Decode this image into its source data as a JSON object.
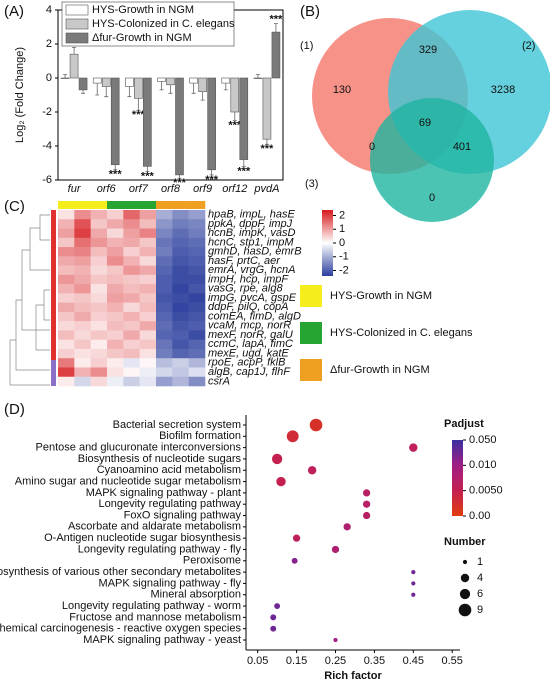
{
  "chart_data": [
    {
      "type": "bar",
      "panel_label": "(A)",
      "ylabel": "Log₂ (Fold Change)",
      "categories": [
        "fur",
        "orf6",
        "orf7",
        "orf8",
        "orf9",
        "orf12",
        "pvdA"
      ],
      "ylim": [
        -6,
        4
      ],
      "yticks": [
        -6,
        -4,
        -2,
        0,
        2,
        4
      ],
      "series": [
        {
          "name": "HYS-Growth in NGM",
          "color": "#ffffff",
          "values": [
            0,
            -0.3,
            -0.5,
            -0.2,
            -0.3,
            -0.3,
            0
          ],
          "errors": [
            0.2,
            0.7,
            0.6,
            0.5,
            0.6,
            0.4,
            0.2
          ],
          "significance": [
            null,
            null,
            null,
            null,
            null,
            null,
            null
          ]
        },
        {
          "name": "HYS-Colonized in C. elegans",
          "color": "#c8c8c8",
          "values": [
            1.4,
            -0.5,
            -1.2,
            -0.4,
            -0.8,
            -2.0,
            -3.6
          ],
          "errors": [
            0.4,
            0.6,
            0.7,
            0.5,
            0.5,
            0.5,
            0.3
          ],
          "significance": [
            "***",
            null,
            "***",
            null,
            null,
            "***",
            "***"
          ]
        },
        {
          "name": "Δfur-Growth in NGM",
          "color": "#7a7a7a",
          "values": [
            -0.7,
            -5.1,
            -5.2,
            -5.7,
            -5.4,
            -4.8,
            2.7
          ],
          "errors": [
            0.2,
            0.3,
            0.3,
            0.2,
            0.3,
            0.4,
            0.5
          ],
          "significance": [
            null,
            "***",
            "***",
            "***",
            "***",
            "***",
            "***"
          ]
        }
      ]
    },
    {
      "type": "venn",
      "panel_label": "(B)",
      "sets": [
        {
          "name": "(1)",
          "color": "#f4776a"
        },
        {
          "name": "(2)",
          "color": "#3fc5d6"
        },
        {
          "name": "(3)",
          "color": "#1fb5a0"
        }
      ],
      "regions": [
        {
          "sets": [
            0
          ],
          "value": 130
        },
        {
          "sets": [
            1
          ],
          "value": 3238
        },
        {
          "sets": [
            2
          ],
          "value": 0
        },
        {
          "sets": [
            0,
            1
          ],
          "value": 329
        },
        {
          "sets": [
            0,
            2
          ],
          "value": 0
        },
        {
          "sets": [
            1,
            2
          ],
          "value": 401
        },
        {
          "sets": [
            0,
            1,
            2
          ],
          "value": 69
        }
      ]
    },
    {
      "type": "heatmap",
      "panel_label": "(C)",
      "row_labels": [
        "hpaB, impL, hasE",
        "ppkA, dppF, impJ",
        "hcnB, impK, vasD",
        "hcnC, stp1, impM",
        "gmhD, hasD, emrB",
        "hasF, prtC, aer",
        "emrA, vrgG, hcnA",
        "impH, hcp, impF",
        "vasG, rpe, alg8",
        "impG, pvcA, gspE",
        "ddpF, pilQ, copA",
        "comEA, fimD, algD",
        "vcaM, mcp, norR",
        "mexF, norR, galU",
        "ccmC, lapA, fimC",
        "mexE, ugd, katE",
        "rpoE, acpP, fklB",
        "algB, cap1J, flhF",
        "csrA"
      ],
      "groups": [
        {
          "name": "HYS-Growth in NGM",
          "color": "#f5ee1c"
        },
        {
          "name": "HYS-Colonized in C. elegans",
          "color": "#27a532"
        },
        {
          "name": "Δfur-Growth in NGM",
          "color": "#f0a020"
        }
      ],
      "column_groups": [
        0,
        0,
        0,
        1,
        1,
        1,
        2,
        2,
        2
      ],
      "z": [
        [
          0.3,
          1.2,
          0.8,
          0.5,
          1.6,
          1.0,
          -1.0,
          -1.4,
          -1.2
        ],
        [
          0.8,
          1.8,
          0.6,
          0.9,
          1.2,
          0.7,
          -1.3,
          -1.6,
          -1.5
        ],
        [
          1.0,
          2.0,
          0.9,
          0.4,
          1.0,
          1.3,
          -1.5,
          -1.8,
          -1.6
        ],
        [
          0.6,
          1.5,
          1.1,
          0.8,
          0.9,
          0.6,
          -1.7,
          -1.9,
          -1.8
        ],
        [
          1.2,
          1.3,
          0.7,
          1.0,
          0.5,
          0.8,
          -1.6,
          -2.0,
          -1.9
        ],
        [
          0.9,
          1.0,
          0.5,
          1.2,
          0.8,
          0.4,
          -1.8,
          -2.1,
          -2.0
        ],
        [
          0.7,
          0.8,
          0.4,
          0.6,
          1.1,
          0.9,
          -1.9,
          -2.2,
          -2.1
        ],
        [
          1.1,
          0.9,
          0.6,
          0.7,
          0.6,
          0.5,
          -2.0,
          -2.2,
          -2.2
        ],
        [
          0.8,
          1.1,
          0.3,
          0.9,
          0.7,
          0.8,
          -2.0,
          -2.3,
          -2.1
        ],
        [
          0.5,
          0.6,
          0.4,
          1.0,
          0.9,
          0.6,
          -2.1,
          -2.2,
          -2.3
        ],
        [
          0.9,
          0.7,
          0.6,
          0.8,
          0.4,
          0.7,
          -2.0,
          -2.3,
          -2.2
        ],
        [
          0.6,
          0.9,
          0.5,
          0.6,
          0.8,
          0.5,
          -1.9,
          -2.2,
          -2.1
        ],
        [
          0.4,
          0.5,
          0.3,
          0.7,
          0.6,
          0.9,
          -1.8,
          -2.1,
          -2.0
        ],
        [
          0.7,
          0.4,
          0.6,
          0.5,
          0.9,
          0.4,
          -1.9,
          -2.0,
          -2.2
        ],
        [
          0.3,
          0.6,
          0.2,
          0.8,
          0.5,
          0.6,
          -1.7,
          -2.1,
          -1.9
        ],
        [
          0.5,
          0.3,
          0.4,
          0.6,
          0.7,
          0.3,
          -1.6,
          -1.9,
          -1.8
        ],
        [
          1.4,
          0.2,
          0.5,
          0.2,
          -0.3,
          0.1,
          -0.8,
          -0.6,
          -0.9
        ],
        [
          2.0,
          0.8,
          1.2,
          0.3,
          0.1,
          -0.2,
          -0.5,
          -0.7,
          -0.4
        ],
        [
          0.2,
          -0.5,
          0.4,
          -0.2,
          -0.6,
          -0.3,
          -1.2,
          -0.9,
          -1.4
        ]
      ],
      "zlim": [
        -2.4,
        2.4
      ],
      "zticks": [
        -2,
        -1,
        0,
        1,
        2
      ],
      "colorscale": [
        "#2a3d9c",
        "#ffffff",
        "#d7191c"
      ]
    },
    {
      "type": "bubble",
      "panel_label": "(D)",
      "categories": [
        "Bacterial secretion system",
        "Biofilm formation",
        "Pentose and glucuronate interconversions",
        "Biosynthesis of nucleotide sugars",
        "Cyanoamino acid metabolism",
        "Amino sugar and nucleotide sugar metabolism",
        "MAPK signaling pathway - plant",
        "Longevity regulating pathway",
        "FoxO signaling pathway",
        "Ascorbate and aldarate metabolism",
        "O-Antigen nucleotide sugar biosynthesis",
        "Longevity regulating pathway - fly",
        "Peroxisome",
        "Biosynthesis of various other secondary metabolites",
        "MAPK signaling pathway - fly",
        "Mineral absorption",
        "Longevity regulating pathway - worm",
        "Fructose and mannose metabolism",
        "Chemical carcinogenesis - reactive oxygen species",
        "MAPK signaling pathway - yeast"
      ],
      "x": [
        0.2,
        0.14,
        0.45,
        0.1,
        0.19,
        0.11,
        0.33,
        0.33,
        0.33,
        0.28,
        0.15,
        0.25,
        0.145,
        0.45,
        0.45,
        0.45,
        0.1,
        0.09,
        0.09,
        0.25
      ],
      "size": [
        9,
        8,
        4,
        6,
        4,
        5,
        3,
        3,
        3,
        3,
        3,
        3,
        2,
        1,
        1,
        1,
        2,
        2,
        2,
        1
      ],
      "padjust": [
        0.002,
        0.003,
        0.006,
        0.005,
        0.006,
        0.005,
        0.007,
        0.007,
        0.007,
        0.008,
        0.006,
        0.008,
        0.02,
        0.03,
        0.03,
        0.03,
        0.03,
        0.03,
        0.03,
        0.01
      ],
      "xlabel": "Rich factor",
      "xlim": [
        0.02,
        0.57
      ],
      "xticks": [
        0.05,
        0.15,
        0.25,
        0.35,
        0.45,
        0.55
      ],
      "color_title": "Padjust",
      "cticks": [
        {
          "value": 0.05,
          "label": "0.050"
        },
        {
          "value": 0.01,
          "label": "0.010"
        },
        {
          "value": 0.005,
          "label": "0.0050"
        },
        {
          "value": 0,
          "label": "0.00"
        }
      ],
      "ccolors": [
        "#3b2fa0",
        "#a01f85",
        "#c4204f",
        "#e23c10"
      ],
      "size_title": "Number",
      "size_ticks": [
        1,
        4,
        6,
        9
      ],
      "size_color": "#111111"
    }
  ]
}
